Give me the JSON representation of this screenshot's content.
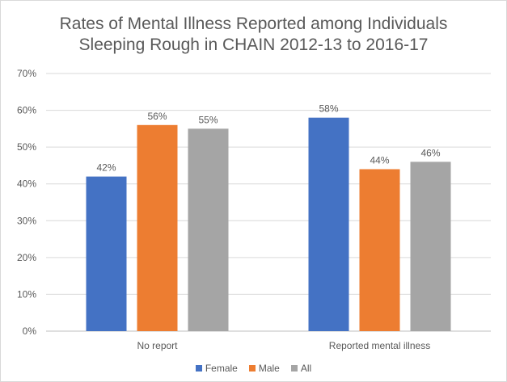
{
  "chart_data": {
    "type": "bar",
    "title_lines": [
      "Rates of Mental Illness Reported among Individuals",
      "Sleeping Rough in CHAIN 2012-13 to 2016-17"
    ],
    "categories": [
      "No report",
      "Reported mental illness"
    ],
    "series": [
      {
        "name": "Female",
        "color": "#4472c4",
        "values": [
          42,
          58
        ],
        "labels": [
          "42%",
          "58%"
        ]
      },
      {
        "name": "Male",
        "color": "#ed7d31",
        "values": [
          56,
          44
        ],
        "labels": [
          "56%",
          "44%"
        ]
      },
      {
        "name": "All",
        "color": "#a5a5a5",
        "values": [
          55,
          46
        ],
        "labels": [
          "55%",
          "46%"
        ]
      }
    ],
    "y_ticks": [
      "0%",
      "10%",
      "20%",
      "30%",
      "40%",
      "50%",
      "60%",
      "70%"
    ],
    "ylim": [
      0,
      70
    ],
    "grid": true,
    "legend_position": "bottom"
  }
}
